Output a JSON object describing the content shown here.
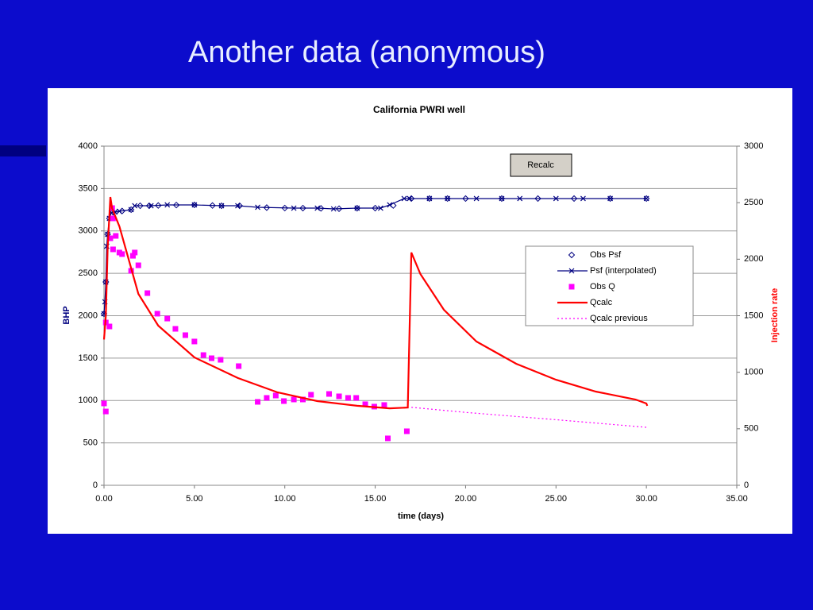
{
  "slide_title": "Another data (anonymous)",
  "button": "Recalc",
  "chart_data": {
    "type": "line",
    "title": "California PWRI well",
    "xlabel": "time (days)",
    "ylabel": "BHP",
    "y2label": "Injection rate",
    "xlim": [
      0,
      35
    ],
    "xticks": [
      {
        "value": 0,
        "label": "0.00"
      },
      {
        "value": 5,
        "label": "5.00"
      },
      {
        "value": 10,
        "label": "10.00"
      },
      {
        "value": 15,
        "label": "15.00"
      },
      {
        "value": 20,
        "label": "20.00"
      },
      {
        "value": 25,
        "label": "25.00"
      },
      {
        "value": 30,
        "label": "30.00"
      },
      {
        "value": 35,
        "label": "35.00"
      }
    ],
    "ylim": [
      0,
      4000
    ],
    "yticks": [
      0,
      500,
      1000,
      1500,
      2000,
      2500,
      3000,
      3500,
      4000
    ],
    "y2lim": [
      0,
      3000
    ],
    "y2ticks": [
      0,
      500,
      1000,
      1500,
      2000,
      2500,
      3000
    ],
    "grid": true,
    "legend": "upper right",
    "series": [
      {
        "name": "Obs Psf",
        "color": "#000080",
        "marker": "diamond",
        "line": "none",
        "x": [
          0,
          0.1,
          0.2,
          0.3,
          0.5,
          1,
          1.5,
          2,
          2.5,
          3,
          4,
          5,
          6,
          6.5,
          7.5,
          9,
          10,
          11,
          12,
          13,
          14,
          15,
          16,
          17,
          18,
          19,
          20,
          22,
          24,
          26,
          28,
          30
        ],
        "values": [
          2023,
          2398,
          2960,
          3148,
          3222,
          3235,
          3251,
          3297,
          3297,
          3300,
          3305,
          3307,
          3300,
          3297,
          3297,
          3275,
          3270,
          3269,
          3266,
          3262,
          3268,
          3269,
          3300,
          3382,
          3382,
          3382,
          3382,
          3382,
          3382,
          3382,
          3382,
          3382
        ]
      },
      {
        "name": "Psf (interpolated)",
        "color": "#000080",
        "marker": "x",
        "line": "solid",
        "x": [
          0,
          0.05,
          0.1,
          0.15,
          0.2,
          0.3,
          0.4,
          0.6,
          0.85,
          1.5,
          1.7,
          2.6,
          3.5,
          5,
          6.5,
          7.4,
          8.5,
          10.5,
          11.8,
          12.7,
          14,
          15.3,
          15.8,
          16.6,
          16.9,
          18,
          19,
          20.6,
          22,
          23,
          25,
          26.5,
          28,
          30
        ],
        "values": [
          2023,
          2164,
          2398,
          2820,
          2960,
          3148,
          3213,
          3222,
          3232,
          3251,
          3297,
          3297,
          3307,
          3307,
          3297,
          3297,
          3279,
          3269,
          3269,
          3260,
          3269,
          3269,
          3307,
          3382,
          3382,
          3382,
          3382,
          3382,
          3382,
          3382,
          3382,
          3382,
          3382,
          3382
        ]
      },
      {
        "name": "Obs Q",
        "color": "#ff00ff",
        "marker": "square",
        "line": "none",
        "axis": "y2",
        "x": [
          0,
          0.1,
          0.1,
          0.3,
          0.35,
          0.45,
          0.5,
          0.5,
          0.65,
          0.85,
          1,
          1.5,
          1.6,
          1.7,
          1.9,
          2.4,
          2.95,
          3.5,
          3.95,
          4.5,
          5,
          5.5,
          5.95,
          6.45,
          7.45,
          8.5,
          9,
          9.5,
          9.95,
          10.5,
          11,
          11.45,
          12.45,
          13,
          13.5,
          13.95,
          14.45,
          14.95,
          15.5,
          15.7,
          16.75
        ],
        "values": [
          724,
          653,
          1440,
          1405,
          2185,
          2452,
          2361,
          2087,
          2206,
          2059,
          2045,
          1897,
          2030,
          2059,
          1946,
          1700,
          1518,
          1475,
          1384,
          1328,
          1272,
          1152,
          1124,
          1110,
          1054,
          738,
          773,
          794,
          745,
          759,
          759,
          801,
          808,
          787,
          773,
          773,
          717,
          696,
          710,
          415,
          478
        ]
      },
      {
        "name": "Qcalc",
        "color": "#ff0000",
        "marker": "none",
        "line": "solid",
        "axis": "y2",
        "x": [
          0,
          0.1,
          0.2,
          0.35,
          0.45,
          0.85,
          1.9,
          3,
          5,
          7.4,
          9.6,
          11.8,
          14,
          15.8,
          16.8,
          17,
          17.5,
          18.8,
          20.6,
          22.8,
          25,
          27.2,
          29.4,
          30,
          30.05
        ],
        "values": [
          1290,
          1500,
          2100,
          2550,
          2450,
          2290,
          1693,
          1412,
          1131,
          949,
          822,
          745,
          703,
          681,
          688,
          2059,
          1869,
          1553,
          1272,
          1075,
          934,
          829,
          759,
          724,
          703
        ]
      },
      {
        "name": "Qcalc previous",
        "color": "#ff00ff",
        "marker": "none",
        "line": "dotted",
        "axis": "y2",
        "x": [
          17,
          20,
          25,
          30
        ],
        "values": [
          690,
          645,
          580,
          513
        ]
      }
    ]
  }
}
